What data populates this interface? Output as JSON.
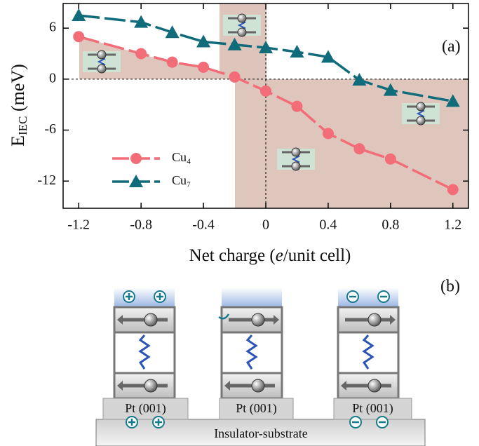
{
  "chart_data": {
    "type": "line",
    "panel_label": "(a)",
    "x_label_parts": [
      "Net charge (",
      "e",
      "/unit cell)"
    ],
    "y_label_parts": [
      "E",
      "IEC",
      " (meV)"
    ],
    "x": [
      -1.2,
      -0.8,
      -0.6,
      -0.4,
      -0.2,
      0,
      0.2,
      0.4,
      0.6,
      0.8,
      1.2
    ],
    "series": [
      {
        "name": "Cu₄",
        "color": "#f26d78",
        "marker": "circle",
        "values": [
          5.0,
          3.0,
          2.0,
          1.4,
          0.25,
          -1.4,
          -3.2,
          -6.4,
          -8.2,
          -9.4,
          -13.0
        ]
      },
      {
        "name": "Cu₇",
        "color": "#106b7a",
        "marker": "triangle",
        "values": [
          7.5,
          6.7,
          5.5,
          4.4,
          4.05,
          3.7,
          3.2,
          2.6,
          -0.1,
          -1.3,
          -2.6
        ]
      }
    ],
    "xlim": [
      -1.3,
      1.3
    ],
    "ylim": [
      -15.2,
      8.9
    ],
    "xticks": [
      -1.2,
      -0.8,
      -0.4,
      0,
      0.4,
      0.8,
      1.2
    ],
    "yticks": [
      -12,
      -6,
      0,
      6
    ]
  },
  "diagram": {
    "panel_label": "(b)",
    "substrates": [
      "Pt (001)",
      "Pt (001)",
      "Pt (001)"
    ],
    "base": "Insulator-substrate"
  }
}
